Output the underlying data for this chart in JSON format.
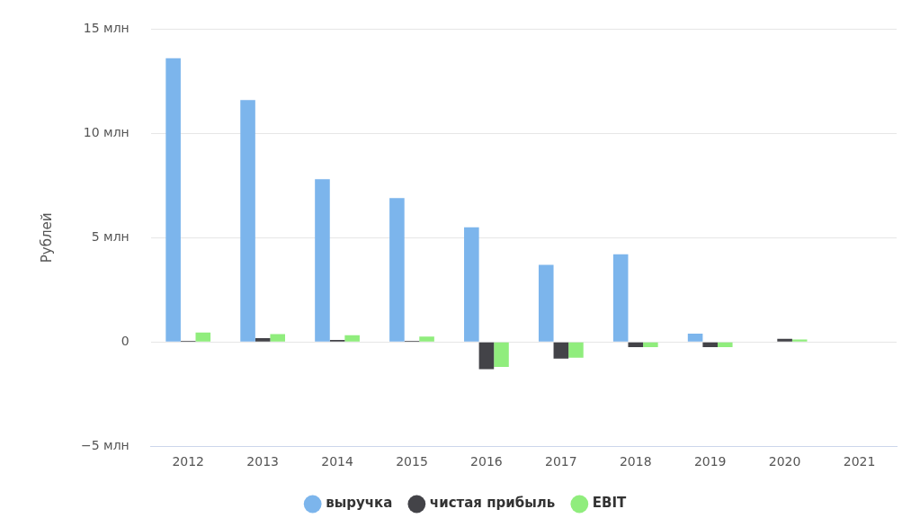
{
  "chart_data": {
    "type": "bar",
    "ylabel": "Рублей",
    "categories": [
      "2012",
      "2013",
      "2014",
      "2015",
      "2016",
      "2017",
      "2018",
      "2019",
      "2020",
      "2021"
    ],
    "series": [
      {
        "name": "выручка",
        "color": "#7cb5ec",
        "values": [
          13.6,
          11.6,
          7.8,
          6.9,
          5.5,
          3.7,
          4.2,
          0.4,
          0,
          null
        ]
      },
      {
        "name": "чистая прибыль",
        "color": "#434348",
        "values": [
          0.05,
          0.18,
          0.1,
          0.05,
          -1.3,
          -0.8,
          -0.25,
          -0.25,
          0.15,
          null
        ]
      },
      {
        "name": "EBIT",
        "color": "#90ed7d",
        "values": [
          0.45,
          0.38,
          0.32,
          0.26,
          -1.2,
          -0.76,
          -0.25,
          -0.25,
          0.12,
          null
        ]
      }
    ],
    "ylim": [
      -5,
      15
    ],
    "yticks": [
      {
        "value": -5,
        "label": "−5 млн"
      },
      {
        "value": 0,
        "label": "0"
      },
      {
        "value": 5,
        "label": "5 млн"
      },
      {
        "value": 10,
        "label": "10 млн"
      },
      {
        "value": 15,
        "label": "15 млн"
      }
    ],
    "grid": "y",
    "legend": "bottom"
  }
}
